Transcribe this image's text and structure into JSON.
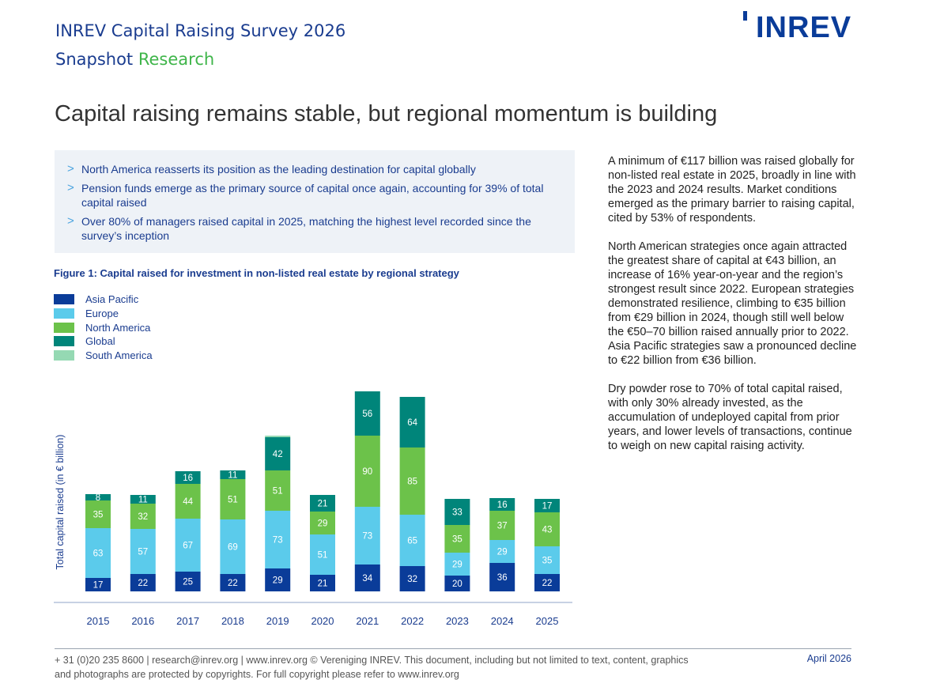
{
  "header": {
    "title": "INREV Capital Raising Survey 2026",
    "subtitle_part1": "Snapshot",
    "subtitle_part2": "Research",
    "logo_text": "INREV"
  },
  "headline": "Capital raising remains stable, but regional momentum is building",
  "summary": {
    "bullets": [
      "North America reasserts its position as the leading destination for capital globally",
      "Pension funds emerge as the primary source of capital once again, accounting for 39% of total capital raised",
      "Over 80% of managers raised capital in 2025, matching the highest level recorded since the survey’s inception"
    ]
  },
  "figure_title": "Figure 1: Capital raised for investment in non-listed real estate by regional strategy",
  "chart_data": {
    "type": "bar",
    "stacked": true,
    "ylabel": "Total capital raised (in € billion)",
    "categories": [
      "2015",
      "2016",
      "2017",
      "2018",
      "2019",
      "2020",
      "2021",
      "2022",
      "2023",
      "2024",
      "2025"
    ],
    "series": [
      {
        "name": "Asia Pacific",
        "color": "#0a3c99",
        "values": [
          17,
          22,
          25,
          22,
          29,
          21,
          34,
          32,
          20,
          36,
          22
        ]
      },
      {
        "name": "Europe",
        "color": "#5bcbeb",
        "values": [
          63,
          57,
          67,
          69,
          73,
          51,
          73,
          65,
          29,
          29,
          35
        ]
      },
      {
        "name": "North America",
        "color": "#6cc24a",
        "values": [
          35,
          32,
          44,
          51,
          51,
          29,
          90,
          85,
          35,
          37,
          43
        ]
      },
      {
        "name": "Global",
        "color": "#00857a",
        "values": [
          8,
          11,
          16,
          11,
          42,
          21,
          56,
          64,
          33,
          16,
          17
        ]
      },
      {
        "name": "South America",
        "color": "#95d9b3",
        "values": [
          0,
          0,
          0,
          0,
          2,
          0,
          0,
          0,
          0,
          0,
          0
        ]
      }
    ],
    "data_labels": true,
    "legend_position": "top-left",
    "grid": false
  },
  "body_text": {
    "paragraphs": [
      "A minimum of €117 billion was raised globally for non-listed real estate in 2025, broadly in line with the 2023 and 2024 results. Market conditions emerged as the primary barrier to raising capital, cited by 53% of respondents.",
      "North American strategies once again attracted the greatest share of capital at €43 billion, an increase of 16% year-on-year and the region’s strongest result since 2022. European strategies demonstrated resilience, climbing to €35 billion from €29 billion in 2024, though still well below the €50–70 billion raised annually prior to 2022. Asia Pacific strategies saw a pronounced decline to €22 billion from €36 billion.",
      "Dry powder rose to 70% of total capital raised, with only 30% already invested, as the accumulation of undeployed capital from prior years, and lower levels of transactions, continue to weigh on new capital raising activity."
    ]
  },
  "footer": {
    "contact": "+ 31 (0)20 235 8600 | research@inrev.org | www.inrev.org  © Vereniging INREV. This document, including but not limited to text, content, graphics and photographs are protected by copyrights. For full copyright please refer to www.inrev.org",
    "date": "April 2026"
  }
}
